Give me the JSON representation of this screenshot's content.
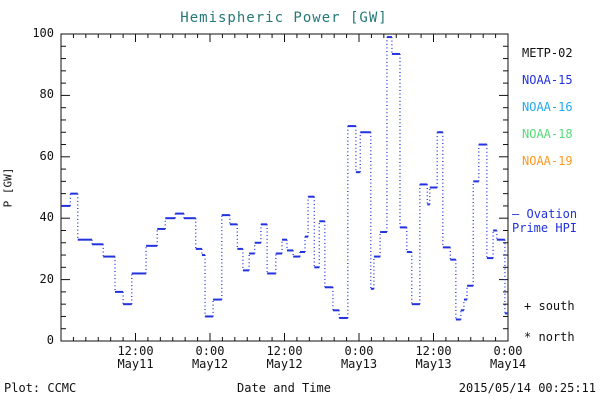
{
  "footer": {
    "left": "Plot: CCMC",
    "right": "2015/05/14 00:25:11"
  },
  "legend": {
    "satellites": [
      {
        "label": "METP-02",
        "color": "#111111"
      },
      {
        "label": "NOAA-15",
        "color": "#2233DD"
      },
      {
        "label": "NOAA-16",
        "color": "#22AAEE"
      },
      {
        "label": "NOAA-18",
        "color": "#55DD77"
      },
      {
        "label": "NOAA-19",
        "color": "#FF9922"
      }
    ],
    "ovation": {
      "sample": "—",
      "line1": "Ovation",
      "line2": "Prime HPI",
      "color": "#2233DD"
    },
    "south_symbol": "+",
    "south_label": "south",
    "north_symbol": "*",
    "north_label": "north"
  },
  "chart_data": {
    "type": "line",
    "title": "Hemispheric Power [GW]",
    "title_color": "#267878",
    "xlabel": "Date and Time",
    "ylabel": "P [GW]",
    "ylim": [
      0,
      100
    ],
    "y_major_ticks": [
      0,
      20,
      40,
      60,
      80,
      100
    ],
    "y_minor_step": 4,
    "x_range_hours": [
      0,
      72
    ],
    "x_minor_step_hours": 2,
    "x_major_ticks": [
      {
        "hour": 12,
        "time": "12:00",
        "date": "May11"
      },
      {
        "hour": 24,
        "time": "0:00",
        "date": "May12"
      },
      {
        "hour": 36,
        "time": "12:00",
        "date": "May12"
      },
      {
        "hour": 48,
        "time": "0:00",
        "date": "May13"
      },
      {
        "hour": 60,
        "time": "12:00",
        "date": "May13"
      },
      {
        "hour": 72,
        "time": "0:00",
        "date": "May14"
      }
    ],
    "grid": false,
    "legend_position": "right-outside",
    "line_color": "#2233DD",
    "line_style": "dotted-step",
    "series": [
      {
        "name": "Ovation Prime HPI",
        "step_hours": [
          0,
          1.5,
          2.7,
          5.0,
          6.8,
          8.7,
          10.0,
          11.4,
          13.7,
          15.5,
          16.8,
          18.4,
          19.8,
          21.7,
          22.7,
          23.2,
          24.5,
          25.9,
          27.2,
          28.4,
          29.3,
          30.3,
          31.2,
          32.2,
          33.2,
          34.6,
          35.6,
          36.4,
          37.4,
          38.5,
          39.3,
          39.8,
          40.8,
          41.6,
          42.5,
          43.8,
          44.8,
          46.2,
          47.5,
          48.2,
          49.9,
          50.4,
          51.4,
          52.5,
          53.3,
          54.6,
          55.7,
          56.5,
          57.8,
          59.0,
          59.4,
          60.6,
          61.5,
          62.7,
          63.6,
          64.4,
          64.9,
          65.4,
          66.4,
          67.3,
          68.6,
          69.6,
          70.2,
          71.5
        ],
        "values": [
          44,
          48,
          33,
          31.5,
          27.5,
          16,
          12,
          22,
          31,
          36.5,
          40,
          41.5,
          40,
          30,
          28,
          8,
          13.5,
          41,
          38,
          30,
          23,
          28.5,
          32,
          38,
          22,
          28.5,
          33,
          29.5,
          27.5,
          29,
          34,
          47,
          24,
          39,
          17.5,
          10,
          7.5,
          70,
          55,
          68,
          17,
          27.5,
          35.5,
          99,
          93.5,
          37,
          29,
          12,
          51,
          44.5,
          50,
          68,
          30.5,
          26.5,
          7,
          10,
          13.5,
          18,
          52,
          64,
          27,
          36,
          33,
          9
        ]
      }
    ]
  }
}
